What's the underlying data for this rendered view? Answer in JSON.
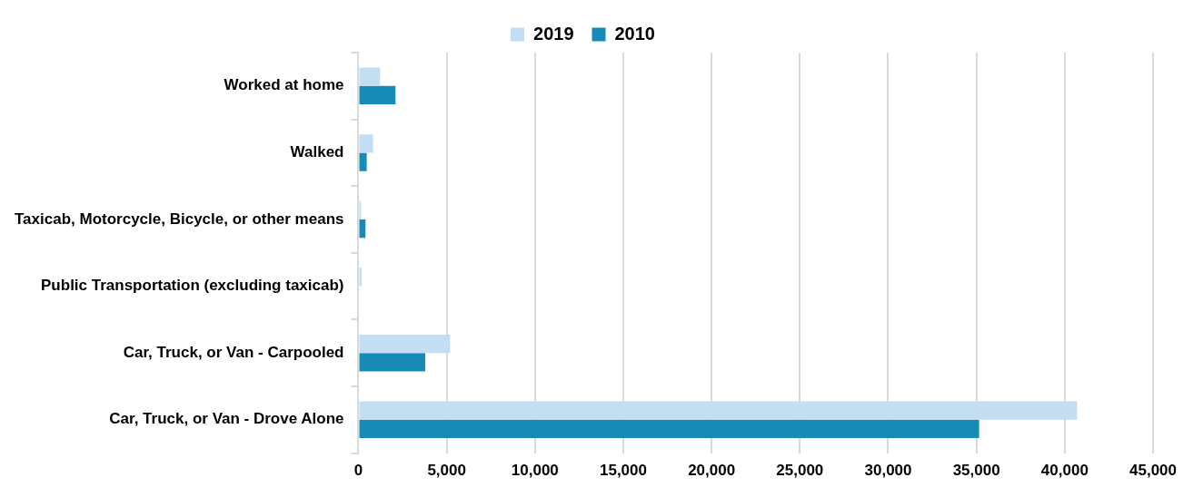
{
  "chart_data": {
    "type": "bar",
    "orientation": "horizontal",
    "categories": [
      "Worked at home",
      "Walked",
      "Taxicab, Motorcycle, Bicycle, or other means",
      "Public Transportation (excluding taxicab)",
      "Car, Truck, or Van - Carpooled",
      "Car, Truck, or Van - Drove Alone"
    ],
    "series": [
      {
        "name": "2019",
        "color": "#c3ddf2",
        "values": [
          1230,
          830,
          150,
          190,
          5190,
          40700
        ]
      },
      {
        "name": "2010",
        "color": "#168bb7",
        "values": [
          2100,
          470,
          400,
          0,
          3780,
          35150
        ]
      }
    ],
    "xlim": [
      0,
      45000
    ],
    "xticks": [
      {
        "value": 0,
        "label": "0"
      },
      {
        "value": 5000,
        "label": "5,000"
      },
      {
        "value": 10000,
        "label": "10,000"
      },
      {
        "value": 15000,
        "label": "15,000"
      },
      {
        "value": 20000,
        "label": "20,000"
      },
      {
        "value": 25000,
        "label": "25,000"
      },
      {
        "value": 30000,
        "label": "30,000"
      },
      {
        "value": 35000,
        "label": "35,000"
      },
      {
        "value": 40000,
        "label": "40,000"
      },
      {
        "value": 45000,
        "label": "45,000"
      }
    ],
    "grid": "x",
    "legend": "top"
  }
}
